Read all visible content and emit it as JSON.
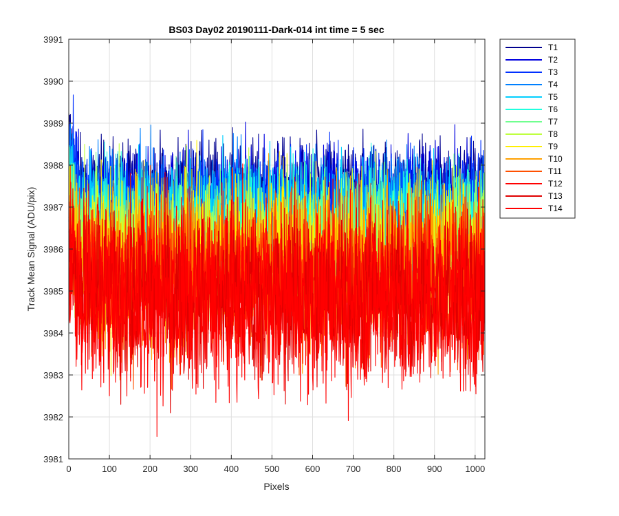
{
  "chart_data": {
    "type": "line",
    "title": "BS03 Day02 20190111-Dark-014 int time = 5 sec",
    "xlabel": "Pixels",
    "ylabel": "Track Mean Signal (ADU/pix)",
    "xlim": [
      0,
      1024
    ],
    "ylim": [
      3981,
      3991
    ],
    "xticks": [
      0,
      100,
      200,
      300,
      400,
      500,
      600,
      700,
      800,
      900,
      1000
    ],
    "yticks": [
      3981,
      3982,
      3983,
      3984,
      3985,
      3986,
      3987,
      3988,
      3989,
      3990,
      3991
    ],
    "grid": true,
    "legend_position": "outside-top-right",
    "n_points_per_series": 1024,
    "series": [
      {
        "name": "T1",
        "color": "#00008f",
        "mean": 3987.5,
        "spread": 0.55
      },
      {
        "name": "T2",
        "color": "#0000df",
        "mean": 3987.3,
        "spread": 0.6
      },
      {
        "name": "T3",
        "color": "#0030ff",
        "mean": 3987.1,
        "spread": 0.65
      },
      {
        "name": "T4",
        "color": "#0080ff",
        "mean": 3986.9,
        "spread": 0.7
      },
      {
        "name": "T5",
        "color": "#00cfff",
        "mean": 3986.7,
        "spread": 0.75
      },
      {
        "name": "T6",
        "color": "#20ffdf",
        "mean": 3986.4,
        "spread": 0.8
      },
      {
        "name": "T7",
        "color": "#70ff8f",
        "mean": 3986.2,
        "spread": 0.85
      },
      {
        "name": "T8",
        "color": "#bfff40",
        "mean": 3986.0,
        "spread": 0.9
      },
      {
        "name": "T9",
        "color": "#ffef00",
        "mean": 3985.8,
        "spread": 0.95
      },
      {
        "name": "T10",
        "color": "#ffa000",
        "mean": 3985.6,
        "spread": 1.0
      },
      {
        "name": "T11",
        "color": "#ff5000",
        "mean": 3985.3,
        "spread": 1.0
      },
      {
        "name": "T12",
        "color": "#ff0000",
        "mean": 3985.1,
        "spread": 1.05
      },
      {
        "name": "T13",
        "color": "#df0000",
        "mean": 3984.9,
        "spread": 1.05
      },
      {
        "name": "T14",
        "color": "#ff0000",
        "mean": 3984.8,
        "spread": 1.1
      }
    ]
  }
}
